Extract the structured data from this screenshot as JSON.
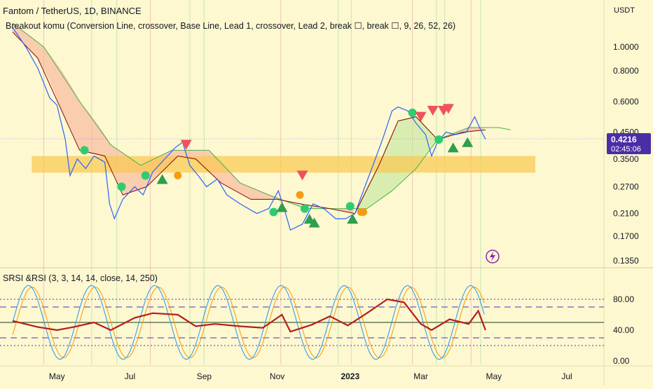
{
  "header": {
    "title": "Fantom / TetherUS, 1D, BINANCE",
    "indicator": "Breakout komu (Conversion Line, crossover, Base Line, Lead 1, crossover, Lead 2, break ☐, break ☐, 9, 26, 52, 26)",
    "currency": "USDT"
  },
  "price_axis": {
    "ticks": [
      "1.0000",
      "0.8000",
      "0.6000",
      "0.4500",
      "0.3500",
      "0.2700",
      "0.2100",
      "0.1700",
      "0.1350"
    ],
    "last_price": "0.4216",
    "countdown": "02:45:06"
  },
  "rsi_panel": {
    "title": "SRSI &RSI (3, 3, 14, 14, close, 14, 250)",
    "ticks": [
      "80.00",
      "40.00",
      "0.00"
    ]
  },
  "time_axis": {
    "labels": [
      "May",
      "Jul",
      "Sep",
      "Nov",
      "2023",
      "Mar",
      "May",
      "Jul"
    ]
  },
  "colors": {
    "background": "#fdf8d0",
    "price_line": "#2962ff",
    "conversion_line": "#8b0000",
    "base_line": "#4caf50",
    "cloud_bear": "#f7b59a",
    "cloud_bull": "#c8e6a0",
    "support_zone": "#f9c74f",
    "rsi_line": "#b71c1c",
    "srsi_k": "#2196f3",
    "srsi_d": "#ff9800",
    "buy_marker": "#2e9e4f",
    "sell_marker": "#f0515c",
    "price_badge": "#4a2ea6"
  },
  "icons": {
    "replay": "lightning-icon"
  },
  "chart_data": {
    "type": "line",
    "symbol": "FTM/USDT",
    "interval": "1D",
    "scale": "log",
    "ylim": [
      0.13,
      1.3
    ],
    "x_range": [
      "2022-03-20",
      "2023-08-01"
    ],
    "series": [
      {
        "name": "Fantom / TetherUS",
        "points": [
          [
            "2022-03-25",
            1.2
          ],
          [
            "2022-04-05",
            1.0
          ],
          [
            "2022-04-15",
            0.82
          ],
          [
            "2022-04-25",
            0.62
          ],
          [
            "2022-05-01",
            0.58
          ],
          [
            "2022-05-08",
            0.42
          ],
          [
            "2022-05-12",
            0.3
          ],
          [
            "2022-05-18",
            0.35
          ],
          [
            "2022-05-25",
            0.32
          ],
          [
            "2022-06-01",
            0.36
          ],
          [
            "2022-06-10",
            0.34
          ],
          [
            "2022-06-14",
            0.23
          ],
          [
            "2022-06-18",
            0.2
          ],
          [
            "2022-06-25",
            0.24
          ],
          [
            "2022-07-05",
            0.27
          ],
          [
            "2022-07-12",
            0.25
          ],
          [
            "2022-07-20",
            0.31
          ],
          [
            "2022-07-30",
            0.35
          ],
          [
            "2022-08-08",
            0.39
          ],
          [
            "2022-08-14",
            0.41
          ],
          [
            "2022-08-20",
            0.33
          ],
          [
            "2022-08-27",
            0.3
          ],
          [
            "2022-09-03",
            0.27
          ],
          [
            "2022-09-12",
            0.29
          ],
          [
            "2022-09-20",
            0.25
          ],
          [
            "2022-10-01",
            0.23
          ],
          [
            "2022-10-15",
            0.21
          ],
          [
            "2022-10-25",
            0.22
          ],
          [
            "2022-11-02",
            0.26
          ],
          [
            "2022-11-08",
            0.21
          ],
          [
            "2022-11-12",
            0.18
          ],
          [
            "2022-11-22",
            0.19
          ],
          [
            "2022-12-01",
            0.23
          ],
          [
            "2022-12-10",
            0.22
          ],
          [
            "2022-12-20",
            0.2
          ],
          [
            "2022-12-28",
            0.2
          ],
          [
            "2023-01-05",
            0.21
          ],
          [
            "2023-01-12",
            0.26
          ],
          [
            "2023-01-20",
            0.33
          ],
          [
            "2023-01-28",
            0.42
          ],
          [
            "2023-02-05",
            0.55
          ],
          [
            "2023-02-10",
            0.57
          ],
          [
            "2023-02-18",
            0.55
          ],
          [
            "2023-02-25",
            0.49
          ],
          [
            "2023-03-05",
            0.44
          ],
          [
            "2023-03-10",
            0.36
          ],
          [
            "2023-03-15",
            0.41
          ],
          [
            "2023-03-22",
            0.45
          ],
          [
            "2023-03-30",
            0.44
          ],
          [
            "2023-04-08",
            0.45
          ],
          [
            "2023-04-15",
            0.52
          ],
          [
            "2023-04-20",
            0.46
          ],
          [
            "2023-04-24",
            0.4216
          ]
        ]
      },
      {
        "name": "Conversion Line",
        "points": [
          [
            "2022-03-25",
            1.15
          ],
          [
            "2022-04-15",
            0.9
          ],
          [
            "2022-05-05",
            0.55
          ],
          [
            "2022-05-20",
            0.38
          ],
          [
            "2022-06-10",
            0.36
          ],
          [
            "2022-06-25",
            0.25
          ],
          [
            "2022-07-15",
            0.27
          ],
          [
            "2022-08-10",
            0.36
          ],
          [
            "2022-08-25",
            0.35
          ],
          [
            "2022-09-15",
            0.28
          ],
          [
            "2022-10-10",
            0.24
          ],
          [
            "2022-11-01",
            0.24
          ],
          [
            "2022-11-20",
            0.23
          ],
          [
            "2022-12-15",
            0.22
          ],
          [
            "2023-01-05",
            0.21
          ],
          [
            "2023-01-25",
            0.33
          ],
          [
            "2023-02-10",
            0.5
          ],
          [
            "2023-02-25",
            0.52
          ],
          [
            "2023-03-15",
            0.42
          ],
          [
            "2023-04-05",
            0.45
          ],
          [
            "2023-04-24",
            0.46
          ]
        ]
      },
      {
        "name": "Base Line",
        "points": [
          [
            "2022-03-25",
            1.25
          ],
          [
            "2022-04-20",
            1.0
          ],
          [
            "2022-05-20",
            0.6
          ],
          [
            "2022-06-15",
            0.4
          ],
          [
            "2022-07-10",
            0.33
          ],
          [
            "2022-08-05",
            0.38
          ],
          [
            "2022-09-05",
            0.38
          ],
          [
            "2022-10-01",
            0.28
          ],
          [
            "2022-10-25",
            0.25
          ],
          [
            "2022-11-25",
            0.22
          ],
          [
            "2022-12-20",
            0.22
          ],
          [
            "2023-01-15",
            0.22
          ],
          [
            "2023-02-05",
            0.26
          ],
          [
            "2023-02-25",
            0.32
          ],
          [
            "2023-03-15",
            0.42
          ],
          [
            "2023-04-10",
            0.47
          ],
          [
            "2023-05-05",
            0.47
          ],
          [
            "2023-05-15",
            0.46
          ]
        ]
      }
    ],
    "support_zone": [
      0.308,
      0.36
    ],
    "markers": [
      {
        "date": "2022-05-24",
        "price": 0.38,
        "kind": "circle-buy"
      },
      {
        "date": "2022-06-24",
        "price": 0.27,
        "kind": "circle-buy"
      },
      {
        "date": "2022-07-14",
        "price": 0.3,
        "kind": "circle-buy"
      },
      {
        "date": "2022-07-28",
        "price": 0.29,
        "kind": "triangle-up"
      },
      {
        "date": "2022-08-10",
        "price": 0.3,
        "kind": "circle-sell"
      },
      {
        "date": "2022-08-17",
        "price": 0.4,
        "kind": "triangle-down"
      },
      {
        "date": "2022-10-29",
        "price": 0.213,
        "kind": "circle-buy"
      },
      {
        "date": "2022-11-05",
        "price": 0.223,
        "kind": "triangle-up"
      },
      {
        "date": "2022-11-20",
        "price": 0.25,
        "kind": "circle-sell"
      },
      {
        "date": "2022-11-22",
        "price": 0.3,
        "kind": "triangle-down"
      },
      {
        "date": "2022-11-24",
        "price": 0.22,
        "kind": "circle-buy"
      },
      {
        "date": "2022-11-28",
        "price": 0.2,
        "kind": "triangle-up"
      },
      {
        "date": "2022-12-02",
        "price": 0.193,
        "kind": "triangle-up"
      },
      {
        "date": "2023-01-01",
        "price": 0.225,
        "kind": "circle-buy"
      },
      {
        "date": "2023-01-03",
        "price": 0.2,
        "kind": "triangle-up"
      },
      {
        "date": "2023-01-10",
        "price": 0.213,
        "kind": "circle-sell"
      },
      {
        "date": "2023-01-12",
        "price": 0.213,
        "kind": "circle-sell"
      },
      {
        "date": "2023-02-22",
        "price": 0.54,
        "kind": "circle-buy"
      },
      {
        "date": "2023-03-01",
        "price": 0.52,
        "kind": "triangle-down"
      },
      {
        "date": "2023-03-11",
        "price": 0.55,
        "kind": "triangle-down"
      },
      {
        "date": "2023-03-16",
        "price": 0.42,
        "kind": "circle-buy"
      },
      {
        "date": "2023-03-20",
        "price": 0.55,
        "kind": "triangle-down"
      },
      {
        "date": "2023-03-24",
        "price": 0.56,
        "kind": "triangle-down"
      },
      {
        "date": "2023-03-28",
        "price": 0.39,
        "kind": "triangle-up"
      },
      {
        "date": "2023-04-09",
        "price": 0.41,
        "kind": "triangle-up"
      }
    ],
    "rsi": {
      "ylim": [
        0,
        100
      ],
      "levels": [
        80,
        70,
        50,
        30,
        20
      ],
      "rsi_series": [
        [
          "2022-03-25",
          52
        ],
        [
          "2022-04-15",
          44
        ],
        [
          "2022-05-01",
          40
        ],
        [
          "2022-05-15",
          44
        ],
        [
          "2022-06-01",
          50
        ],
        [
          "2022-06-15",
          40
        ],
        [
          "2022-07-05",
          56
        ],
        [
          "2022-07-20",
          62
        ],
        [
          "2022-08-10",
          60
        ],
        [
          "2022-08-25",
          45
        ],
        [
          "2022-09-10",
          48
        ],
        [
          "2022-10-01",
          45
        ],
        [
          "2022-10-20",
          43
        ],
        [
          "2022-11-05",
          60
        ],
        [
          "2022-11-12",
          38
        ],
        [
          "2022-11-30",
          47
        ],
        [
          "2022-12-15",
          58
        ],
        [
          "2022-12-30",
          46
        ],
        [
          "2023-01-15",
          62
        ],
        [
          "2023-02-01",
          80
        ],
        [
          "2023-02-15",
          76
        ],
        [
          "2023-03-01",
          48
        ],
        [
          "2023-03-10",
          40
        ],
        [
          "2023-03-25",
          54
        ],
        [
          "2023-04-10",
          48
        ],
        [
          "2023-04-18",
          65
        ],
        [
          "2023-04-24",
          40
        ]
      ]
    }
  }
}
